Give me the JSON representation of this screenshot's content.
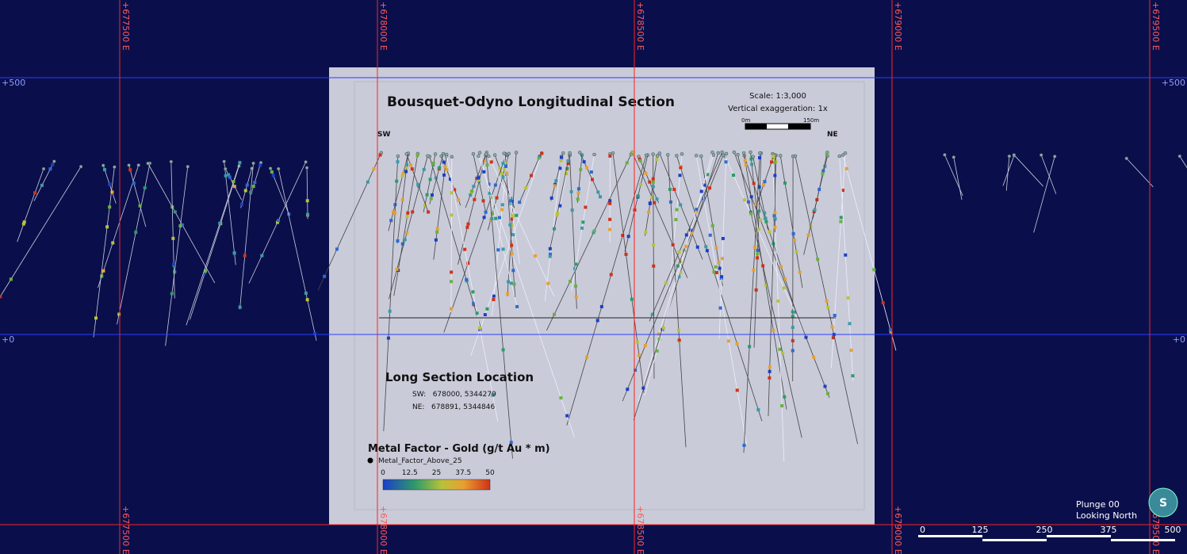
{
  "grid": {
    "easting_labels": [
      "+677500 E",
      "+678000 E",
      "+678500 E",
      "+679000 E",
      "+679500 E"
    ],
    "elevation_labels": [
      "+500",
      "+0"
    ]
  },
  "section": {
    "title": "Bousquet-Odyno Longitudinal Section",
    "scale": "Scale: 1:3,000",
    "vertical_exaggeration": "Vertical exaggeration: 1x",
    "scale_bar": [
      "0m",
      "150m"
    ],
    "sw": "SW",
    "ne": "NE"
  },
  "location": {
    "title": "Long Section Location",
    "sw": "SW:   678000, 5344279",
    "ne": "NE:   678891, 5344846"
  },
  "legend": {
    "title": "Metal Factor - Gold (g/t Au * m)",
    "symbol": "Metal_Factor_Above_25",
    "ticks": [
      "0",
      "12.5",
      "25",
      "37.5",
      "50"
    ]
  },
  "view": {
    "plunge": "Plunge 00",
    "direction": "Looking North",
    "scale_ticks": [
      "0",
      "125",
      "250",
      "375",
      "500"
    ]
  }
}
